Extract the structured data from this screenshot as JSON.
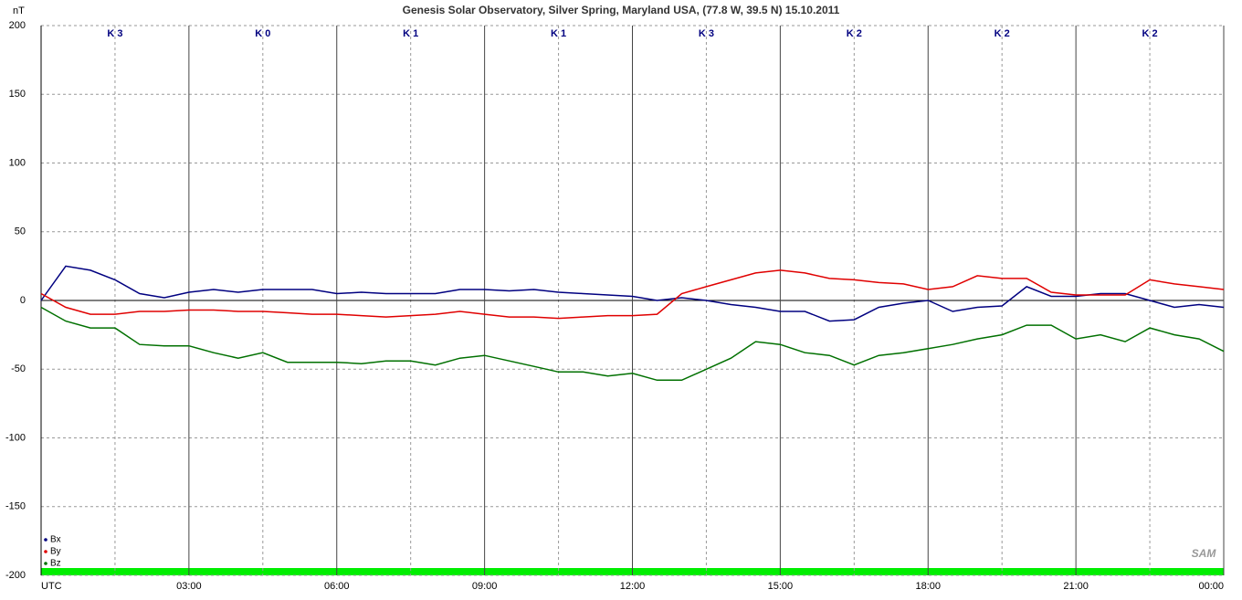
{
  "chart_data": {
    "type": "line",
    "title": "Genesis Solar Observatory, Silver Spring, Maryland USA, (77.8 W, 39.5 N)  15.10.2011",
    "y_label": "nT",
    "annotations": [
      "K 3",
      "K 0",
      "K 1",
      "K 1",
      "K 3",
      "K 2",
      "K 2",
      "K 2"
    ],
    "logo": "SAM",
    "x": [
      0,
      0.5,
      1,
      1.5,
      2,
      2.5,
      3,
      3.5,
      4,
      4.5,
      5,
      5.5,
      6,
      6.5,
      7,
      7.5,
      8,
      8.5,
      9,
      9.5,
      10,
      10.5,
      11,
      11.5,
      12,
      12.5,
      13,
      13.5,
      14,
      14.5,
      15,
      15.5,
      16,
      16.5,
      17,
      17.5,
      18,
      18.5,
      19,
      19.5,
      20,
      20.5,
      21,
      21.5,
      22,
      22.5,
      23,
      23.5,
      24
    ],
    "series": [
      {
        "name": "Bx",
        "color": "#000080",
        "values": [
          0,
          25,
          22,
          15,
          5,
          2,
          6,
          8,
          6,
          8,
          8,
          8,
          5,
          6,
          5,
          5,
          5,
          8,
          8,
          7,
          8,
          6,
          5,
          4,
          3,
          0,
          2,
          0,
          -3,
          -5,
          -8,
          -8,
          -15,
          -14,
          -5,
          -2,
          0,
          -8,
          -5,
          -4,
          10,
          3,
          3,
          5,
          5,
          0,
          -5,
          -3,
          -5
        ]
      },
      {
        "name": "By",
        "color": "#e00000",
        "values": [
          5,
          -5,
          -10,
          -10,
          -8,
          -8,
          -7,
          -7,
          -8,
          -8,
          -9,
          -10,
          -10,
          -11,
          -12,
          -11,
          -10,
          -8,
          -10,
          -12,
          -12,
          -13,
          -12,
          -11,
          -11,
          -10,
          5,
          10,
          15,
          20,
          22,
          20,
          16,
          15,
          13,
          12,
          8,
          10,
          18,
          16,
          16,
          6,
          4,
          4,
          4,
          15,
          12,
          10,
          8
        ]
      },
      {
        "name": "Bz",
        "color": "#007000",
        "values": [
          -5,
          -15,
          -20,
          -20,
          -32,
          -33,
          -33,
          -38,
          -42,
          -38,
          -45,
          -45,
          -45,
          -46,
          -44,
          -44,
          -47,
          -42,
          -40,
          -44,
          -48,
          -52,
          -52,
          -55,
          -53,
          -58,
          -58,
          -50,
          -42,
          -30,
          -32,
          -38,
          -40,
          -47,
          -40,
          -38,
          -35,
          -32,
          -28,
          -25,
          -18,
          -18,
          -28,
          -25,
          -30,
          -20,
          -25,
          -28,
          -37
        ]
      }
    ],
    "xlim": [
      0,
      24
    ],
    "xticks": [
      {
        "value": 0,
        "label": "UTC"
      },
      {
        "value": 3,
        "label": "03:00"
      },
      {
        "value": 6,
        "label": "06:00"
      },
      {
        "value": 9,
        "label": "09:00"
      },
      {
        "value": 12,
        "label": "12:00"
      },
      {
        "value": 15,
        "label": "15:00"
      },
      {
        "value": 18,
        "label": "18:00"
      },
      {
        "value": 21,
        "label": "21:00"
      },
      {
        "value": 24,
        "label": "00:00"
      }
    ],
    "ylim": [
      -200,
      200
    ],
    "yticks": [
      200,
      150,
      100,
      50,
      0,
      -50,
      -100,
      -150,
      -200
    ],
    "grid": true,
    "legend": "bottom-left"
  }
}
